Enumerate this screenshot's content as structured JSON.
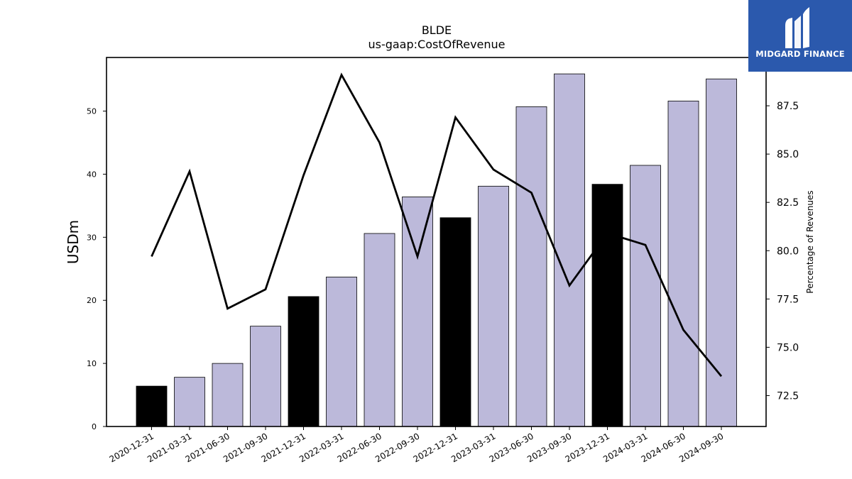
{
  "brand": {
    "name": "MIDGARD FINANCE",
    "color": "#2b59ad"
  },
  "chart_data": {
    "type": "bar",
    "title": "BLDE",
    "subtitle": "us-gaap:CostOfRevenue",
    "ylabel": "USDm",
    "y2label": "Percentage of Revenues",
    "categories": [
      "2020-12-31",
      "2021-03-31",
      "2021-06-30",
      "2021-09-30",
      "2021-12-31",
      "2022-03-31",
      "2022-06-30",
      "2022-09-30",
      "2022-12-31",
      "2023-03-31",
      "2023-06-30",
      "2023-09-30",
      "2023-12-31",
      "2024-03-31",
      "2024-06-30",
      "2024-09-30"
    ],
    "series": [
      {
        "values": [
          6.4,
          7.8,
          10.0,
          15.9,
          20.6,
          23.7,
          30.6,
          36.4,
          33.1,
          38.1,
          50.7,
          55.9,
          38.4,
          41.4,
          51.6,
          55.1
        ],
        "axis": "left",
        "colors": [
          "#000000",
          "#bcb9da",
          "#bcb9da",
          "#bcb9da",
          "#000000",
          "#bcb9da",
          "#bcb9da",
          "#bcb9da",
          "#000000",
          "#bcb9da",
          "#bcb9da",
          "#bcb9da",
          "#000000",
          "#bcb9da",
          "#bcb9da",
          "#bcb9da"
        ]
      },
      {
        "type": "line",
        "values": [
          79.7,
          84.1,
          77.0,
          78.0,
          83.9,
          89.1,
          85.6,
          79.7,
          86.9,
          84.2,
          83.0,
          78.2,
          80.9,
          80.3,
          75.9,
          73.5
        ],
        "axis": "right",
        "color": "#000000"
      }
    ],
    "ylim": [
      0,
      58.5
    ],
    "y2lim": [
      70.9,
      90.0
    ],
    "yticks": [
      0,
      10,
      20,
      30,
      40,
      50
    ],
    "y2ticks": [
      72.5,
      75.0,
      77.5,
      80.0,
      82.5,
      85.0,
      87.5
    ],
    "grid": false
  }
}
